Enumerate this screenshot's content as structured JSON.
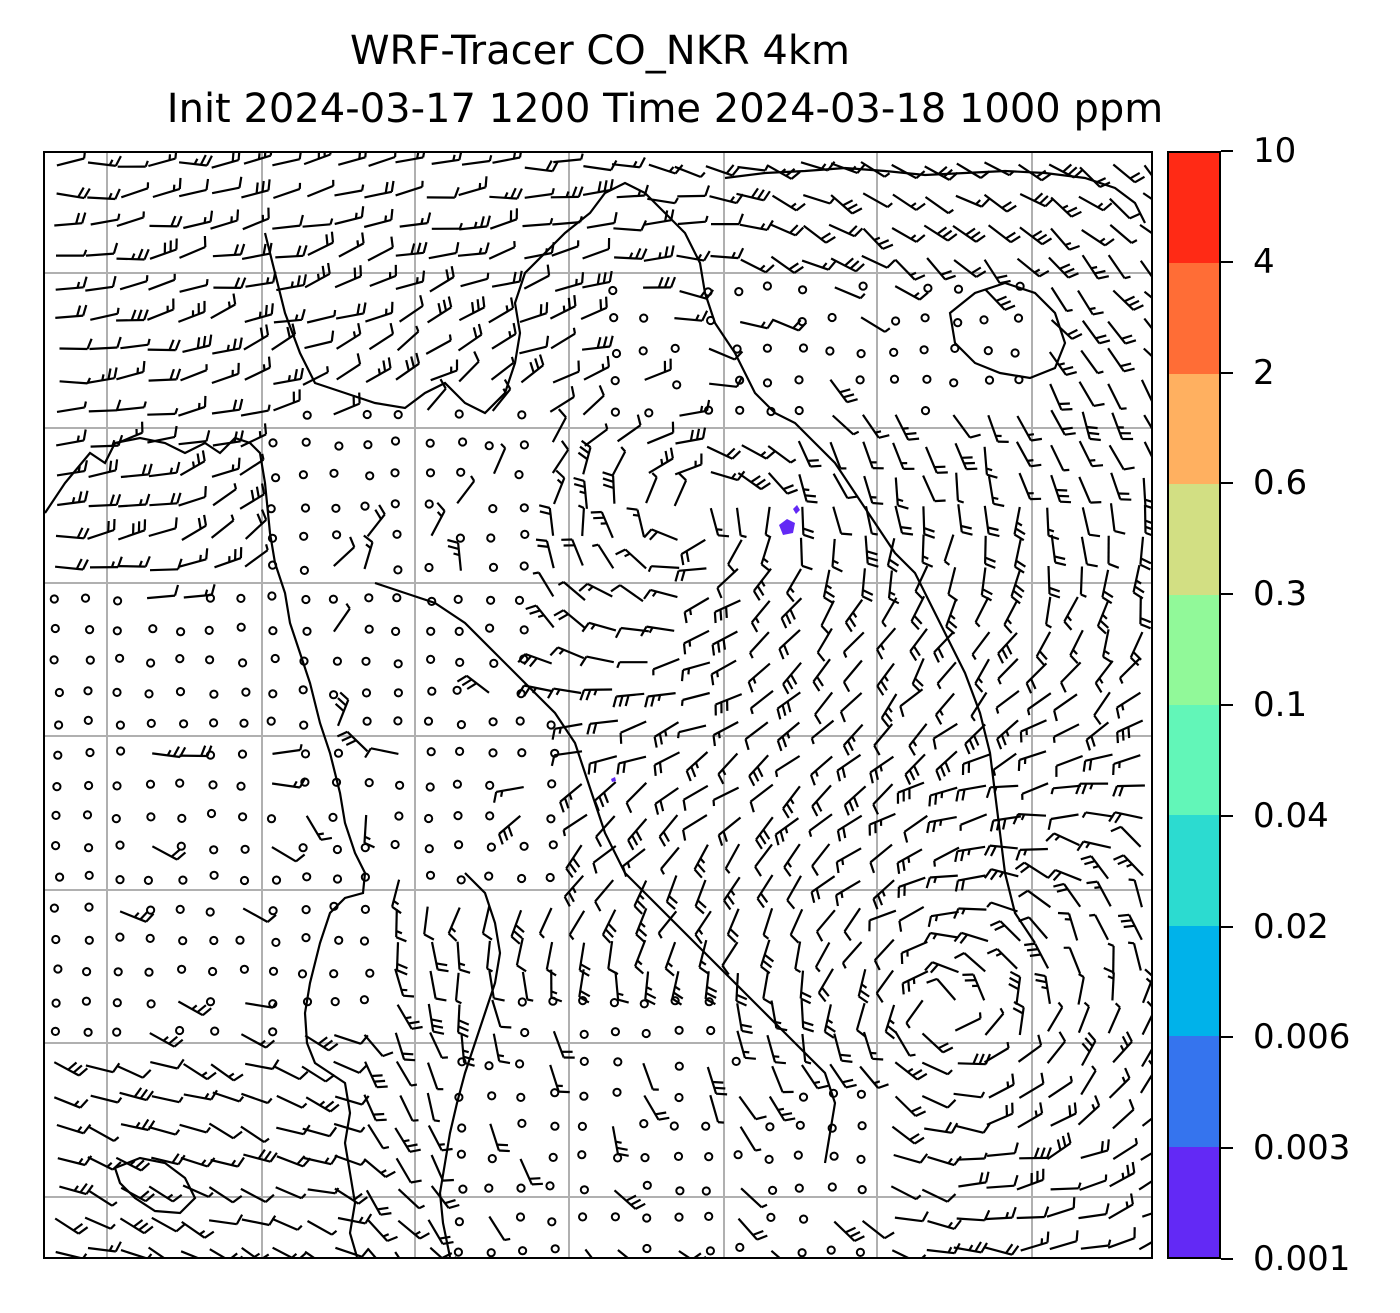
{
  "title": {
    "line1": "WRF-Tracer CO_NKR 4km",
    "line2": "Init 2024-03-17 1200 Time 2024-03-18 1000 ppm"
  },
  "map": {
    "layers": [
      "coastlines",
      "graticule",
      "wind-barbs",
      "tracer-concentration"
    ],
    "gridline_color": "#b0b0b0",
    "coastline_color": "#000000",
    "barb_color": "#000000"
  },
  "colorbar": {
    "levels": [
      "0.001",
      "0.003",
      "0.006",
      "0.02",
      "0.04",
      "0.1",
      "0.3",
      "0.6",
      "2",
      "4",
      "10"
    ],
    "colors": [
      "#6329f5",
      "#3574ee",
      "#00b2ea",
      "#2cdbd0",
      "#62f6b8",
      "#91f999",
      "#d2df83",
      "#ffb060",
      "#ff6d36",
      "#ff2a15"
    ]
  },
  "tracer_patches": [
    {
      "label": "small CO tracer patch near upper-center coast",
      "color": "#6329f5"
    },
    {
      "label": "tiny CO tracer patch near center",
      "color": "#6329f5"
    }
  ]
}
